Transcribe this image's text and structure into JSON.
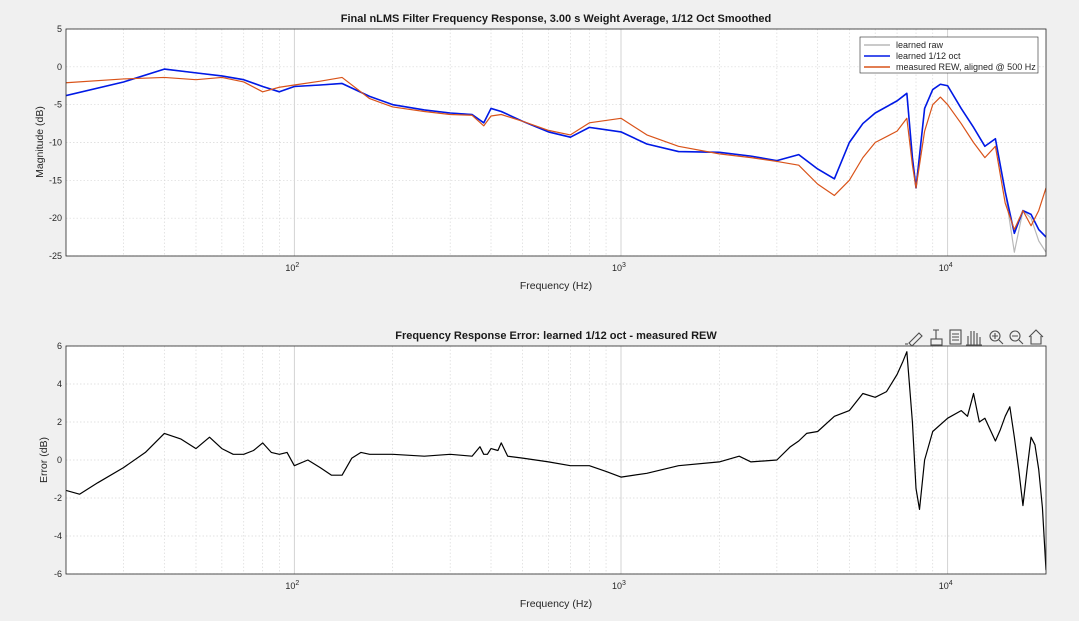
{
  "chart_data": [
    {
      "type": "line",
      "title": "Final nLMS Filter Frequency Response, 3.00 s Weight Average, 1/12 Oct Smoothed",
      "xlabel": "Frequency (Hz)",
      "ylabel": "Magnitude (dB)",
      "xscale": "log",
      "xlim": [
        20,
        20000
      ],
      "ylim": [
        -25,
        5
      ],
      "yticks": [
        5,
        0,
        -5,
        -10,
        -15,
        -20,
        -25
      ],
      "xtick_labels": [
        {
          "base": "10",
          "exp": "2"
        },
        {
          "base": "10",
          "exp": "3"
        },
        {
          "base": "10",
          "exp": "4"
        }
      ],
      "grid": true,
      "legend_placement": "top-right",
      "series": [
        {
          "name": "learned raw",
          "color": "#b8b8b8",
          "x": [
            20,
            30,
            40,
            50,
            60,
            70,
            80,
            90,
            100,
            120,
            140,
            170,
            200,
            250,
            300,
            350,
            380,
            400,
            430,
            500,
            600,
            700,
            800,
            1000,
            1200,
            1500,
            2000,
            2500,
            3000,
            3500,
            4000,
            4500,
            5000,
            5500,
            6000,
            7000,
            7500,
            7800,
            8000,
            8500,
            9000,
            9500,
            10000,
            11000,
            12000,
            13000,
            14000,
            15000,
            16000,
            17000,
            18000,
            19000,
            20000
          ],
          "y": [
            -3.8,
            -2.0,
            -0.3,
            -0.8,
            -1.2,
            -1.7,
            -2.6,
            -3.3,
            -2.6,
            -2.4,
            -2.2,
            -3.9,
            -5.0,
            -5.7,
            -6.1,
            -6.3,
            -7.4,
            -5.5,
            -5.9,
            -7.2,
            -8.6,
            -9.3,
            -8.0,
            -8.6,
            -10.2,
            -11.2,
            -11.3,
            -11.8,
            -12.4,
            -11.6,
            -13.5,
            -14.8,
            -10.0,
            -7.5,
            -6.1,
            -4.5,
            -3.5,
            -12.0,
            -16.0,
            -5.5,
            -3.0,
            -2.3,
            -2.5,
            -5.5,
            -8.0,
            -10.5,
            -9.5,
            -16.5,
            -24.5,
            -19.0,
            -20.0,
            -23.0,
            -24.5
          ]
        },
        {
          "name": "learned 1/12 oct",
          "color": "#0019e6",
          "x": [
            20,
            30,
            40,
            50,
            60,
            70,
            80,
            90,
            100,
            120,
            140,
            170,
            200,
            250,
            300,
            350,
            380,
            400,
            430,
            500,
            600,
            700,
            800,
            1000,
            1200,
            1500,
            2000,
            2500,
            3000,
            3500,
            4000,
            4500,
            5000,
            5500,
            6000,
            7000,
            7500,
            7800,
            8000,
            8500,
            9000,
            9500,
            10000,
            11000,
            12000,
            13000,
            14000,
            15000,
            16000,
            17000,
            18000,
            19000,
            20000
          ],
          "y": [
            -3.8,
            -2.0,
            -0.3,
            -0.8,
            -1.2,
            -1.7,
            -2.6,
            -3.3,
            -2.6,
            -2.4,
            -2.2,
            -3.9,
            -5.0,
            -5.7,
            -6.1,
            -6.3,
            -7.4,
            -5.5,
            -5.9,
            -7.2,
            -8.6,
            -9.3,
            -8.0,
            -8.6,
            -10.2,
            -11.2,
            -11.3,
            -11.8,
            -12.4,
            -11.6,
            -13.5,
            -14.8,
            -10.0,
            -7.5,
            -6.1,
            -4.5,
            -3.5,
            -12.0,
            -16.0,
            -5.5,
            -3.0,
            -2.3,
            -2.5,
            -5.5,
            -8.0,
            -10.5,
            -9.5,
            -16.5,
            -22.0,
            -19.0,
            -19.5,
            -21.5,
            -22.5
          ]
        },
        {
          "name": "measured REW, aligned @ 500 Hz",
          "color": "#d95319",
          "x": [
            20,
            30,
            40,
            50,
            60,
            70,
            80,
            90,
            100,
            120,
            140,
            170,
            200,
            250,
            300,
            350,
            380,
            400,
            430,
            500,
            600,
            700,
            800,
            1000,
            1200,
            1500,
            2000,
            2500,
            3000,
            3500,
            4000,
            4500,
            5000,
            5500,
            6000,
            7000,
            7500,
            7800,
            8000,
            8500,
            9000,
            9500,
            10000,
            11000,
            12000,
            13000,
            14000,
            15000,
            16000,
            17000,
            18000,
            19000,
            20000
          ],
          "y": [
            -2.1,
            -1.6,
            -1.4,
            -1.7,
            -1.4,
            -2.0,
            -3.3,
            -2.7,
            -2.4,
            -1.9,
            -1.4,
            -4.2,
            -5.3,
            -5.9,
            -6.3,
            -6.4,
            -7.8,
            -6.5,
            -6.3,
            -7.2,
            -8.4,
            -9.0,
            -7.4,
            -6.8,
            -9.0,
            -10.5,
            -11.5,
            -12.0,
            -12.5,
            -13.0,
            -15.5,
            -17.0,
            -15.0,
            -12.0,
            -10.0,
            -8.5,
            -6.8,
            -13.0,
            -16.0,
            -8.5,
            -5.0,
            -4.0,
            -5.0,
            -7.5,
            -10.0,
            -12.0,
            -10.5,
            -18.0,
            -21.5,
            -19.0,
            -21.0,
            -19.0,
            -16.0
          ]
        }
      ]
    },
    {
      "type": "line",
      "title": "Frequency Response Error: learned 1/12 oct - measured REW",
      "xlabel": "Frequency (Hz)",
      "ylabel": "Error (dB)",
      "xscale": "log",
      "xlim": [
        20,
        20000
      ],
      "ylim": [
        -6,
        6
      ],
      "yticks": [
        6,
        4,
        2,
        0,
        -2,
        -4,
        -6
      ],
      "xtick_labels": [
        {
          "base": "10",
          "exp": "2"
        },
        {
          "base": "10",
          "exp": "3"
        },
        {
          "base": "10",
          "exp": "4"
        }
      ],
      "grid": true,
      "series": [
        {
          "color": "#000000",
          "x": [
            20,
            22,
            25,
            30,
            35,
            40,
            45,
            50,
            55,
            60,
            65,
            70,
            75,
            80,
            85,
            90,
            95,
            100,
            110,
            120,
            130,
            140,
            150,
            160,
            170,
            180,
            200,
            250,
            300,
            350,
            370,
            380,
            390,
            400,
            420,
            430,
            450,
            500,
            600,
            700,
            800,
            900,
            1000,
            1200,
            1500,
            2000,
            2300,
            2500,
            3000,
            3300,
            3500,
            3700,
            4000,
            4500,
            5000,
            5500,
            6000,
            6500,
            7000,
            7300,
            7500,
            7800,
            8000,
            8200,
            8500,
            9000,
            10000,
            11000,
            11500,
            12000,
            12500,
            13000,
            14000,
            14500,
            15000,
            15500,
            16000,
            16500,
            17000,
            17500,
            18000,
            18500,
            19000,
            19500,
            20000
          ],
          "y": [
            -1.6,
            -1.8,
            -1.2,
            -0.4,
            0.4,
            1.4,
            1.1,
            0.6,
            1.2,
            0.6,
            0.3,
            0.3,
            0.5,
            0.9,
            0.4,
            0.3,
            0.4,
            -0.3,
            0.0,
            -0.4,
            -0.8,
            -0.8,
            0.1,
            0.4,
            0.3,
            0.3,
            0.3,
            0.2,
            0.3,
            0.2,
            0.7,
            0.3,
            0.3,
            0.6,
            0.5,
            0.9,
            0.2,
            0.1,
            -0.1,
            -0.3,
            -0.3,
            -0.6,
            -0.9,
            -0.7,
            -0.3,
            -0.1,
            0.2,
            -0.1,
            0.0,
            0.7,
            1.0,
            1.4,
            1.5,
            2.3,
            2.6,
            3.5,
            3.3,
            3.6,
            4.5,
            5.2,
            5.7,
            2.0,
            -1.5,
            -2.6,
            0.0,
            1.5,
            2.2,
            2.6,
            2.3,
            3.5,
            2.0,
            2.2,
            1.0,
            1.6,
            2.3,
            2.8,
            1.2,
            -0.5,
            -2.4,
            -0.5,
            1.2,
            0.8,
            -0.5,
            -2.5,
            -5.8
          ]
        }
      ]
    }
  ],
  "toolbar": {
    "icons": [
      "brush-icon",
      "data-tips-icon",
      "edit-icon",
      "pan-hand-icon",
      "zoom-in-icon",
      "zoom-out-icon",
      "home-icon"
    ]
  }
}
